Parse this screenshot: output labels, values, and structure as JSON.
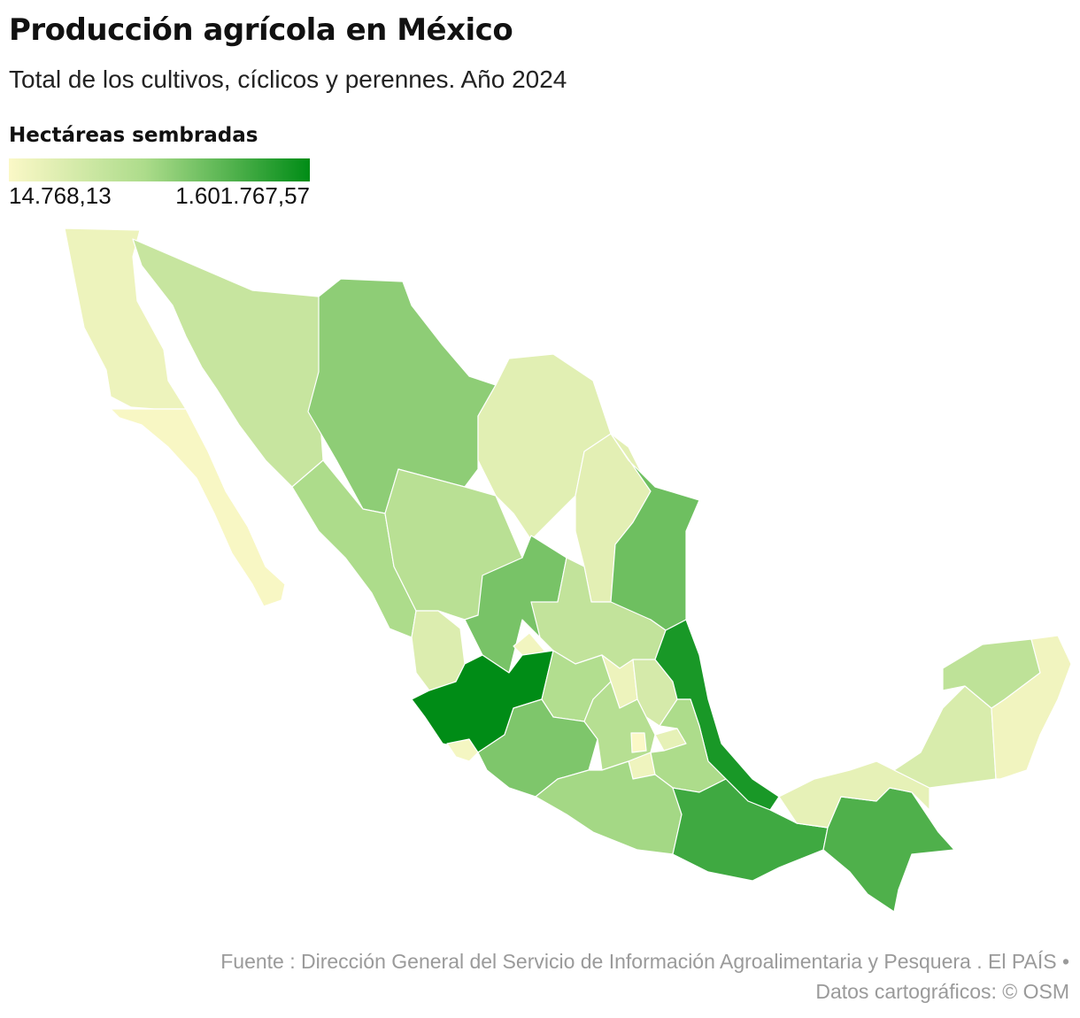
{
  "header": {
    "title": "Producción agrícola en México",
    "subtitle": "Total de los cultivos, cíclicos y perennes. Año 2024"
  },
  "legend": {
    "title": "Hectáreas sembradas",
    "min_label": "14.768,13",
    "max_label": "1.601.767,57",
    "color_min": "#fbf8c7",
    "color_mid": "#addc8b",
    "color_max": "#008c16"
  },
  "map": {
    "country": "México",
    "regions": [
      {
        "id": "baja-california",
        "shade": 0.08
      },
      {
        "id": "baja-california-sur",
        "shade": 0.02
      },
      {
        "id": "sonora",
        "shade": 0.3
      },
      {
        "id": "chihuahua",
        "shade": 0.55
      },
      {
        "id": "coahuila",
        "shade": 0.15
      },
      {
        "id": "nuevo-leon",
        "shade": 0.14
      },
      {
        "id": "tamaulipas",
        "shade": 0.65
      },
      {
        "id": "sinaloa",
        "shade": 0.45
      },
      {
        "id": "durango",
        "shade": 0.38
      },
      {
        "id": "zacatecas",
        "shade": 0.62
      },
      {
        "id": "nayarit",
        "shade": 0.18
      },
      {
        "id": "aguascalientes",
        "shade": 0.05
      },
      {
        "id": "san-luis-potosi",
        "shade": 0.33
      },
      {
        "id": "jalisco",
        "shade": 1.0
      },
      {
        "id": "guanajuato",
        "shade": 0.42
      },
      {
        "id": "queretaro",
        "shade": 0.08
      },
      {
        "id": "hidalgo",
        "shade": 0.22
      },
      {
        "id": "veracruz",
        "shade": 0.92
      },
      {
        "id": "colima",
        "shade": 0.04
      },
      {
        "id": "michoacan",
        "shade": 0.6
      },
      {
        "id": "estado-de-mexico",
        "shade": 0.4
      },
      {
        "id": "ciudad-de-mexico",
        "shade": 0.0
      },
      {
        "id": "morelos",
        "shade": 0.07
      },
      {
        "id": "tlaxcala",
        "shade": 0.12
      },
      {
        "id": "puebla",
        "shade": 0.45
      },
      {
        "id": "guerrero",
        "shade": 0.48
      },
      {
        "id": "oaxaca",
        "shade": 0.8
      },
      {
        "id": "chiapas",
        "shade": 0.75
      },
      {
        "id": "tabasco",
        "shade": 0.12
      },
      {
        "id": "campeche",
        "shade": 0.2
      },
      {
        "id": "yucatan",
        "shade": 0.35
      },
      {
        "id": "quintana-roo",
        "shade": 0.06
      }
    ]
  },
  "footer": {
    "source": "Fuente : Dirección General del Servicio de Información Agroalimentaria y Pesquera . El PAÍS  •",
    "credits": "Datos cartográficos: © OSM"
  }
}
